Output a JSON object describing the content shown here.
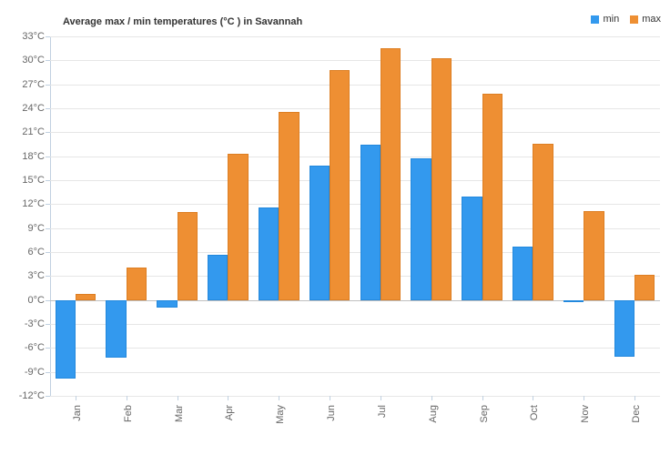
{
  "chart": {
    "type": "bar",
    "title": "Average max / min temperatures (°C ) in Savannah",
    "title_fontsize": 11,
    "background_color": "#ffffff",
    "plot_bg": "#ffffff",
    "grid_color": "#e6e6e6",
    "axis_color": "#c0d0e0",
    "text_color": "#333333",
    "label_color": "#666666",
    "y": {
      "min": -12,
      "max": 33,
      "step": 3,
      "unit": "°C"
    },
    "categories": [
      "Jan",
      "Feb",
      "Mar",
      "Apr",
      "May",
      "Jun",
      "Jul",
      "Aug",
      "Sep",
      "Oct",
      "Nov",
      "Dec"
    ],
    "series": [
      {
        "name": "min",
        "color": "#3399ee",
        "border": "#2288dd",
        "values": [
          -9.8,
          -7.2,
          -0.9,
          5.7,
          11.6,
          16.8,
          19.4,
          17.7,
          12.9,
          6.7,
          0.0,
          -7.1
        ]
      },
      {
        "name": "max",
        "color": "#ee8f33",
        "border": "#dd7e22",
        "values": [
          0.8,
          4.1,
          11.0,
          18.3,
          23.6,
          28.8,
          31.5,
          30.3,
          25.8,
          19.6,
          11.1,
          3.2
        ]
      }
    ],
    "bar_group_padding": 0.2,
    "bar_gap": 0.0
  }
}
